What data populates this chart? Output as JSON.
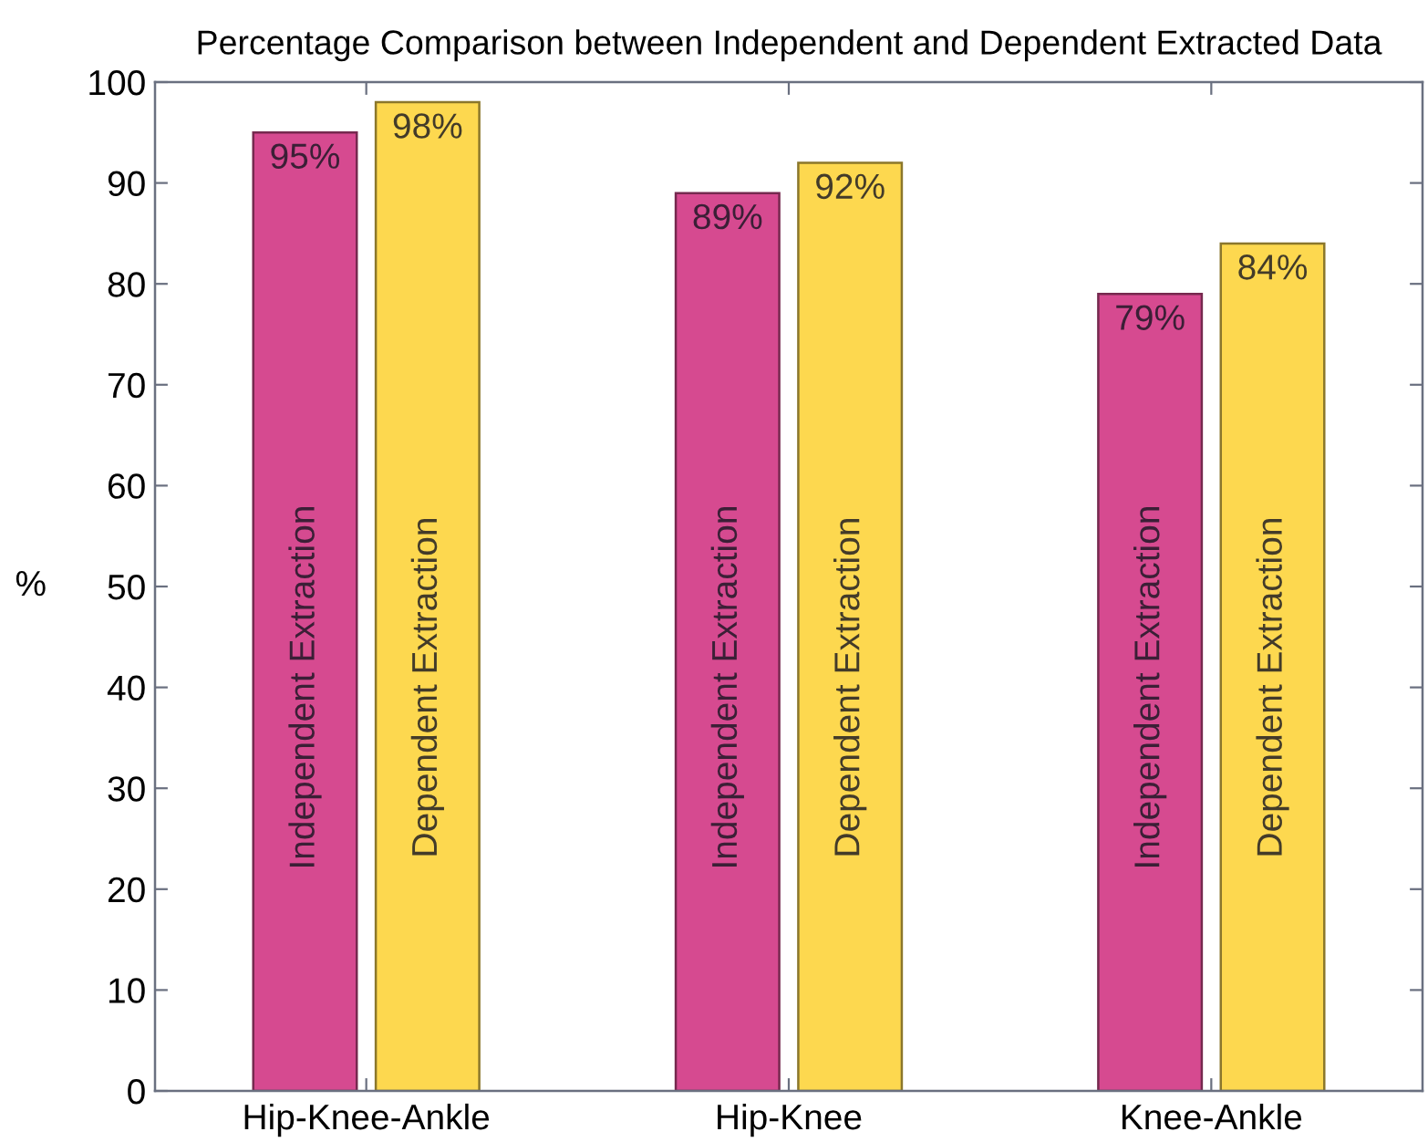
{
  "chart_data": {
    "type": "bar",
    "title": "Percentage Comparison between Independent and Dependent Extracted Data",
    "ylabel": "%",
    "categories": [
      "Hip-Knee-Ankle",
      "Hip-Knee",
      "Knee-Ankle"
    ],
    "series": [
      {
        "name": "Independent Extraction",
        "color": "#d64a90",
        "values": [
          95,
          89,
          79
        ],
        "value_labels": [
          "95%",
          "89%",
          "79%"
        ]
      },
      {
        "name": "Dependent Extraction",
        "color": "#fdd84f",
        "values": [
          98,
          92,
          84
        ],
        "value_labels": [
          "98%",
          "92%",
          "84%"
        ]
      }
    ],
    "ylim": [
      0,
      100
    ],
    "yticks": [
      0,
      10,
      20,
      30,
      40,
      50,
      60,
      70,
      80,
      90,
      100
    ],
    "grid": false,
    "legend": false
  }
}
